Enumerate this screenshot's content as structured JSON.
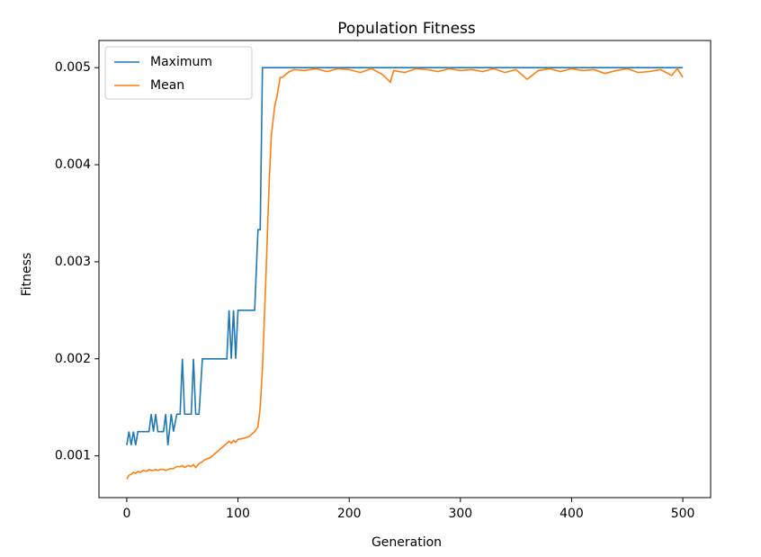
{
  "chart_data": {
    "type": "line",
    "title": "Population Fitness",
    "x_label": "Generation",
    "y_label": "Fitness",
    "x": [
      0,
      2,
      4,
      6,
      8,
      10,
      12,
      15,
      18,
      20,
      22,
      24,
      26,
      28,
      30,
      33,
      35,
      37,
      40,
      42,
      45,
      48,
      50,
      52,
      55,
      58,
      60,
      62,
      65,
      68,
      70,
      75,
      80,
      85,
      90,
      92,
      94,
      96,
      98,
      100,
      105,
      110,
      115,
      118,
      120,
      122,
      125,
      128,
      130,
      133,
      135,
      138,
      140,
      145,
      150,
      160,
      170,
      180,
      190,
      200,
      210,
      220,
      230,
      237,
      240,
      250,
      260,
      270,
      280,
      290,
      300,
      310,
      320,
      330,
      340,
      350,
      360,
      370,
      380,
      390,
      400,
      410,
      420,
      430,
      440,
      450,
      460,
      470,
      480,
      490,
      495,
      500
    ],
    "series": [
      {
        "name": "Maximum",
        "color": "#1f77b4",
        "values": [
          0.00111,
          0.00125,
          0.00111,
          0.00125,
          0.00111,
          0.00125,
          0.00125,
          0.00125,
          0.00125,
          0.00125,
          0.00143,
          0.00125,
          0.00143,
          0.00125,
          0.00125,
          0.00125,
          0.00143,
          0.00111,
          0.00143,
          0.00125,
          0.00143,
          0.00143,
          0.002,
          0.00143,
          0.00143,
          0.00143,
          0.002,
          0.00143,
          0.00143,
          0.002,
          0.002,
          0.002,
          0.002,
          0.002,
          0.002,
          0.0025,
          0.002,
          0.0025,
          0.002,
          0.0025,
          0.0025,
          0.0025,
          0.0025,
          0.00333,
          0.00333,
          0.005,
          0.005,
          0.005,
          0.005,
          0.005,
          0.005,
          0.005,
          0.005,
          0.005,
          0.005,
          0.005,
          0.005,
          0.005,
          0.005,
          0.005,
          0.005,
          0.005,
          0.005,
          0.005,
          0.005,
          0.005,
          0.005,
          0.005,
          0.005,
          0.005,
          0.005,
          0.005,
          0.005,
          0.005,
          0.005,
          0.005,
          0.005,
          0.005,
          0.005,
          0.005,
          0.005,
          0.005,
          0.005,
          0.005,
          0.005,
          0.005,
          0.005,
          0.005,
          0.005,
          0.005,
          0.005,
          0.005
        ]
      },
      {
        "name": "Mean",
        "color": "#ff7f0e",
        "values": [
          0.00076,
          0.0008,
          0.00081,
          0.00083,
          0.00082,
          0.00084,
          0.00083,
          0.00085,
          0.00084,
          0.00086,
          0.00085,
          0.00085,
          0.00086,
          0.00085,
          0.00086,
          0.00086,
          0.00085,
          0.00086,
          0.00087,
          0.00087,
          0.00089,
          0.00089,
          0.0009,
          0.00088,
          0.0009,
          0.00089,
          0.00091,
          0.00088,
          0.00092,
          0.00094,
          0.00096,
          0.00098,
          0.00103,
          0.00108,
          0.00113,
          0.00115,
          0.00113,
          0.00116,
          0.00114,
          0.00117,
          0.00118,
          0.0012,
          0.00125,
          0.0013,
          0.0015,
          0.0019,
          0.0028,
          0.0038,
          0.0043,
          0.0046,
          0.0047,
          0.0049,
          0.0049,
          0.00495,
          0.00498,
          0.00497,
          0.00499,
          0.00496,
          0.00499,
          0.00498,
          0.00495,
          0.00499,
          0.00493,
          0.00485,
          0.00497,
          0.00495,
          0.00499,
          0.00498,
          0.00496,
          0.00499,
          0.00497,
          0.00498,
          0.00496,
          0.00499,
          0.00495,
          0.00498,
          0.00488,
          0.00497,
          0.00499,
          0.00496,
          0.00499,
          0.00497,
          0.00498,
          0.00494,
          0.00497,
          0.00499,
          0.00495,
          0.00496,
          0.00498,
          0.00492,
          0.00499,
          0.0049
        ]
      }
    ],
    "xlim": [
      -25,
      525
    ],
    "ylim": [
      0.00057,
      0.00528
    ],
    "xticks": [
      0,
      100,
      200,
      300,
      400,
      500
    ],
    "yticks": [
      0.001,
      0.002,
      0.003,
      0.004,
      0.005
    ],
    "legend": "upper left"
  }
}
